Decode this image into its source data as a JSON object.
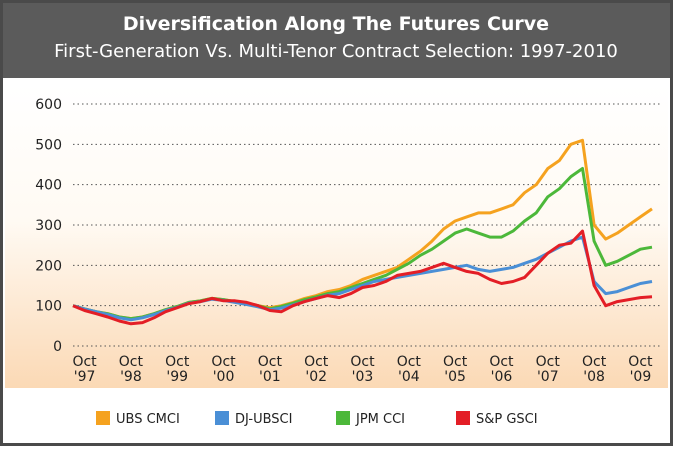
{
  "chart_data": {
    "type": "line",
    "title": "Diversification Along The Futures Curve",
    "subtitle": "First-Generation Vs. Multi-Tenor Contract Selection:  1997-2010",
    "x": [
      null,
      "Oct '97",
      null,
      null,
      null,
      "Oct '98",
      null,
      null,
      null,
      "Oct '99",
      null,
      null,
      null,
      "Oct '00",
      null,
      null,
      null,
      "Oct '01",
      null,
      null,
      null,
      "Oct '02",
      null,
      null,
      null,
      "Oct '03",
      null,
      null,
      null,
      "Oct '04",
      null,
      null,
      null,
      "Oct '05",
      null,
      null,
      null,
      "Oct '06",
      null,
      null,
      null,
      "Oct '07",
      null,
      null,
      null,
      "Oct '08",
      null,
      null,
      null,
      "Oct '09",
      null
    ],
    "ylim": [
      0,
      600
    ],
    "yticks": [
      0,
      100,
      200,
      300,
      400,
      500,
      600
    ],
    "grid": true,
    "legend": "bottom",
    "series": [
      {
        "name": "UBS CMCI",
        "color": "#f5a21f",
        "values": [
          100,
          92,
          85,
          80,
          72,
          68,
          72,
          80,
          90,
          98,
          108,
          112,
          118,
          115,
          110,
          105,
          100,
          95,
          100,
          108,
          118,
          125,
          135,
          140,
          150,
          165,
          175,
          185,
          195,
          215,
          235,
          260,
          290,
          310,
          320,
          330,
          330,
          340,
          350,
          380,
          400,
          440,
          460,
          500,
          510,
          300,
          265,
          280,
          300,
          320,
          340
        ]
      },
      {
        "name": "DJ-UBSCI",
        "color": "#4a8fd6",
        "values": [
          100,
          92,
          85,
          78,
          70,
          65,
          70,
          78,
          88,
          96,
          106,
          110,
          116,
          113,
          108,
          103,
          97,
          90,
          94,
          102,
          110,
          118,
          126,
          130,
          140,
          150,
          160,
          165,
          170,
          175,
          180,
          185,
          190,
          195,
          200,
          190,
          185,
          190,
          195,
          205,
          215,
          230,
          245,
          260,
          270,
          160,
          130,
          135,
          145,
          155,
          160
        ]
      },
      {
        "name": "JPM CCI",
        "color": "#4cb83a",
        "values": [
          100,
          92,
          85,
          80,
          72,
          68,
          72,
          80,
          90,
          98,
          108,
          112,
          118,
          115,
          110,
          105,
          100,
          92,
          98,
          106,
          115,
          122,
          130,
          135,
          145,
          155,
          165,
          175,
          190,
          205,
          225,
          240,
          260,
          280,
          290,
          280,
          270,
          270,
          285,
          310,
          330,
          370,
          390,
          420,
          440,
          260,
          200,
          210,
          225,
          240,
          245
        ]
      },
      {
        "name": "S&P GSCI",
        "color": "#e31e26",
        "values": [
          100,
          88,
          80,
          72,
          62,
          55,
          58,
          70,
          85,
          95,
          105,
          110,
          118,
          112,
          112,
          108,
          100,
          88,
          85,
          100,
          110,
          118,
          125,
          120,
          130,
          145,
          150,
          160,
          175,
          180,
          185,
          195,
          205,
          195,
          185,
          180,
          165,
          155,
          160,
          170,
          200,
          230,
          250,
          255,
          285,
          150,
          100,
          110,
          115,
          120,
          122
        ]
      }
    ]
  }
}
